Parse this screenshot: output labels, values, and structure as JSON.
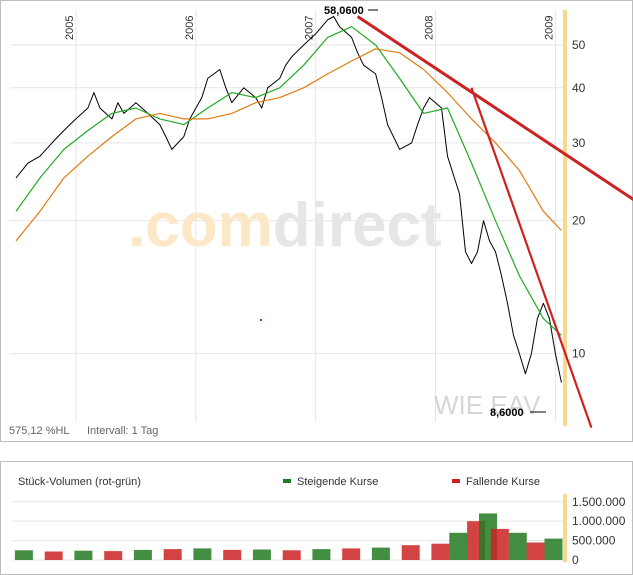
{
  "chart_data": [
    {
      "type": "line",
      "scale": "log",
      "x_ticks": [
        "2005",
        "2006",
        "2007",
        "2008",
        "2009"
      ],
      "y_ticks": [
        10,
        20,
        30,
        40,
        50
      ],
      "ylim": [
        7,
        60
      ],
      "watermark": ".comdirect",
      "symbol": "WIE EAV",
      "footer_left": "575,12 %HL",
      "footer_interval": "Intervall: 1 Tag",
      "high_label": "58,0600",
      "low_label": "8,6000",
      "high_value": 58.06,
      "low_value": 8.6,
      "series": [
        {
          "type": "line",
          "color": "#000000",
          "x": [
            2004.5,
            2004.6,
            2004.7,
            2004.8,
            2004.9,
            2005.0,
            2005.1,
            2005.15,
            2005.2,
            2005.3,
            2005.35,
            2005.4,
            2005.5,
            2005.55,
            2005.6,
            2005.7,
            2005.75,
            2005.8,
            2005.9,
            2005.95,
            2006.05,
            2006.1,
            2006.2,
            2006.25,
            2006.3,
            2006.4,
            2006.5,
            2006.55,
            2006.6,
            2006.7,
            2006.75,
            2006.8,
            2006.9,
            2007.0,
            2007.1,
            2007.15,
            2007.2,
            2007.3,
            2007.35,
            2007.4,
            2007.5,
            2007.55,
            2007.6,
            2007.7,
            2007.8,
            2007.85,
            2007.9,
            2007.95,
            2008.05,
            2008.1,
            2008.2,
            2008.25,
            2008.3,
            2008.35,
            2008.4,
            2008.45,
            2008.5,
            2008.55,
            2008.6,
            2008.65,
            2008.7,
            2008.75,
            2008.8,
            2008.85,
            2008.9,
            2008.95,
            2009.0,
            2009.05
          ],
          "y": [
            25,
            27,
            28,
            30,
            32,
            34,
            36,
            39,
            36,
            34,
            37,
            35,
            37,
            36,
            35,
            33,
            31,
            29,
            31,
            34,
            38,
            42,
            44,
            40,
            37,
            40,
            38,
            36,
            40,
            42,
            45,
            47,
            50,
            53,
            57,
            58,
            55,
            52,
            48,
            45,
            43,
            38,
            33,
            29,
            30,
            33,
            36,
            38,
            36,
            28,
            23,
            17,
            16,
            17,
            20,
            18,
            17,
            15,
            13,
            11,
            10,
            9,
            10,
            12,
            13,
            12,
            10,
            8.6
          ]
        },
        {
          "type": "line",
          "color": "#22aa22",
          "x": [
            2004.5,
            2004.7,
            2004.9,
            2005.1,
            2005.3,
            2005.5,
            2005.7,
            2005.9,
            2006.1,
            2006.3,
            2006.5,
            2006.7,
            2006.9,
            2007.1,
            2007.3,
            2007.5,
            2007.7,
            2007.9,
            2008.1,
            2008.3,
            2008.5,
            2008.7,
            2008.9,
            2009.05
          ],
          "y": [
            21,
            25,
            29,
            32,
            35,
            36,
            34,
            33,
            36,
            39,
            38,
            40,
            45,
            52,
            55,
            50,
            42,
            35,
            36,
            27,
            20,
            15,
            12,
            11
          ]
        },
        {
          "type": "line",
          "color": "#e07a10",
          "x": [
            2004.5,
            2004.7,
            2004.9,
            2005.1,
            2005.3,
            2005.5,
            2005.7,
            2005.9,
            2006.1,
            2006.3,
            2006.5,
            2006.7,
            2006.9,
            2007.1,
            2007.3,
            2007.5,
            2007.7,
            2007.9,
            2008.1,
            2008.3,
            2008.5,
            2008.7,
            2008.9,
            2009.05
          ],
          "y": [
            18,
            21,
            25,
            28,
            31,
            34,
            35,
            34,
            34,
            35,
            37,
            38,
            40,
            43,
            46,
            49,
            48,
            44,
            39,
            34,
            30,
            26,
            21,
            19
          ]
        },
        {
          "type": "trendline",
          "color": "#cc2222",
          "x": [
            2007.35,
            2009.8
          ],
          "y": [
            58,
            21
          ]
        },
        {
          "type": "trendline",
          "color": "#cc2222",
          "x": [
            2008.3,
            2009.3
          ],
          "y": [
            40,
            6.8
          ]
        }
      ]
    },
    {
      "type": "bar",
      "title": "Stück-Volumen (rot-grün)",
      "legend": [
        {
          "label": "Steigende Kurse",
          "color": "#227a22"
        },
        {
          "label": "Fallende Kurse",
          "color": "#cc2222"
        }
      ],
      "y_ticks": [
        "1.500.000",
        "1.000.000",
        "500.000",
        "0"
      ],
      "y_tick_values": [
        1500000,
        1000000,
        500000,
        0
      ],
      "ylim": [
        0,
        1700000
      ],
      "x": [
        2004.55,
        2004.8,
        2005.05,
        2005.3,
        2005.55,
        2005.8,
        2006.05,
        2006.3,
        2006.55,
        2006.8,
        2007.05,
        2007.3,
        2007.55,
        2007.8,
        2008.05,
        2008.2,
        2008.35,
        2008.45,
        2008.55,
        2008.7,
        2008.85,
        2009.0
      ],
      "values": [
        250000,
        220000,
        240000,
        230000,
        260000,
        280000,
        300000,
        260000,
        270000,
        250000,
        280000,
        300000,
        320000,
        380000,
        420000,
        700000,
        1000000,
        1200000,
        800000,
        700000,
        450000,
        550000
      ],
      "colors": [
        "#227a22",
        "#cc2222",
        "#227a22",
        "#cc2222",
        "#227a22",
        "#cc2222",
        "#227a22",
        "#cc2222",
        "#227a22",
        "#cc2222",
        "#227a22",
        "#cc2222",
        "#227a22",
        "#cc2222",
        "#cc2222",
        "#227a22",
        "#cc2222",
        "#227a22",
        "#cc2222",
        "#227a22",
        "#cc2222",
        "#227a22"
      ]
    }
  ]
}
